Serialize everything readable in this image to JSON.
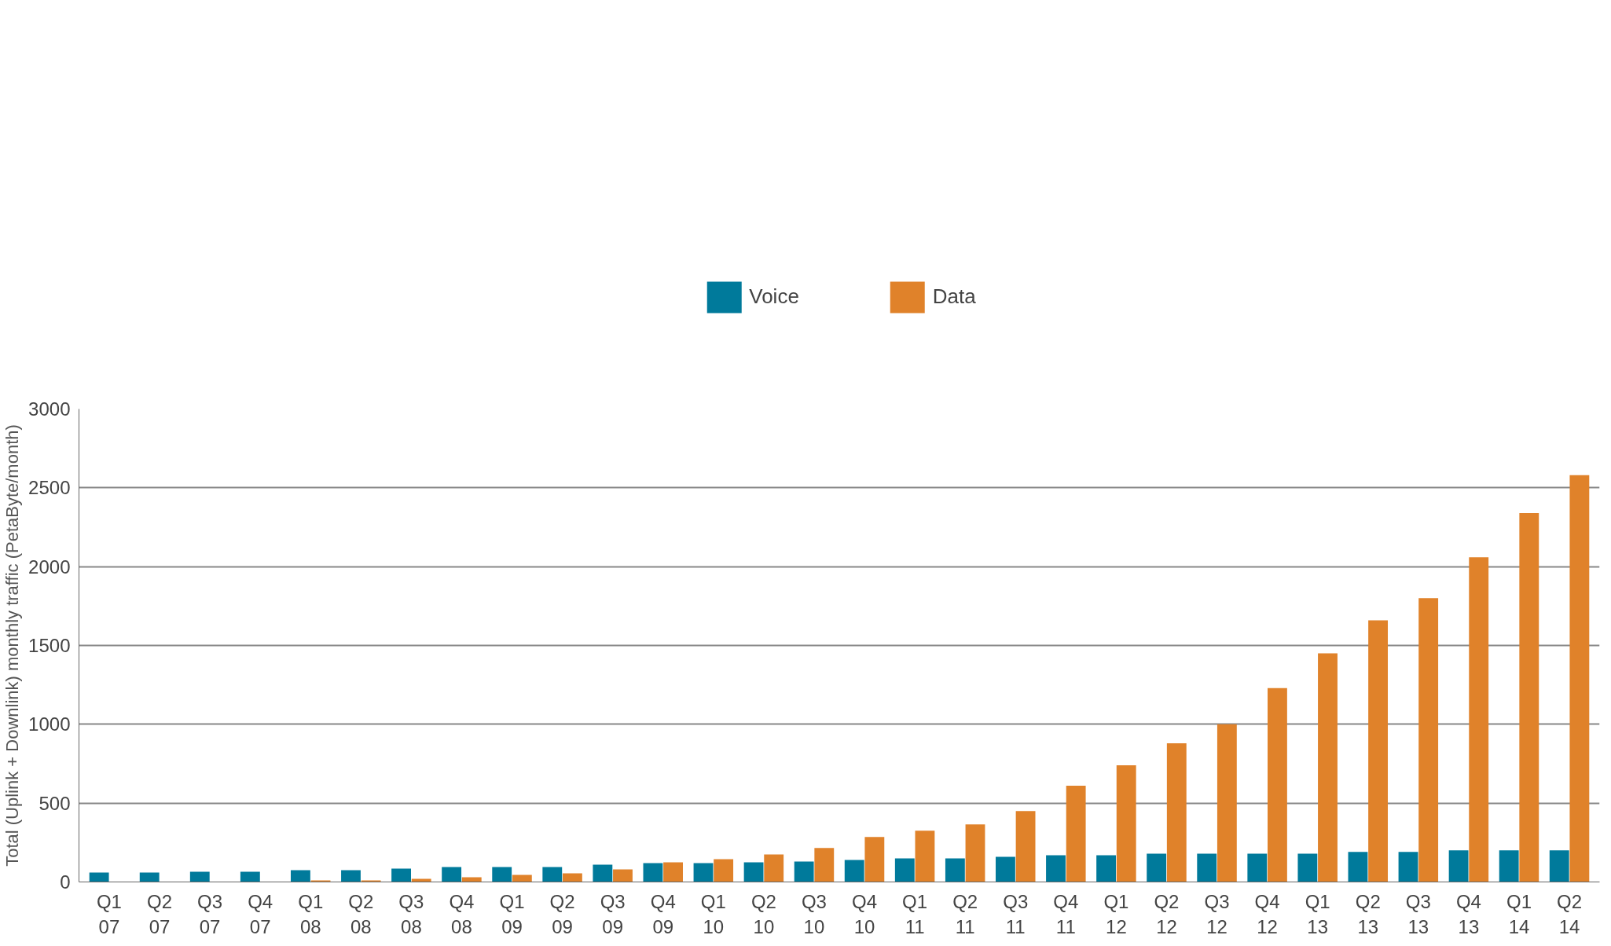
{
  "chart_data": {
    "type": "bar",
    "ylabel": "Total (Uplink + Downlink) monthly traffic (PetaByte/month)",
    "categories": [
      "Q1 07",
      "Q2 07",
      "Q3 07",
      "Q4 07",
      "Q1 08",
      "Q2 08",
      "Q3 08",
      "Q4 08",
      "Q1 09",
      "Q2 09",
      "Q3 09",
      "Q4 09",
      "Q1 10",
      "Q2 10",
      "Q3 10",
      "Q4 10",
      "Q1 11",
      "Q2 11",
      "Q3 11",
      "Q4 11",
      "Q1 12",
      "Q2 12",
      "Q3 12",
      "Q4 12",
      "Q1 13",
      "Q2 13",
      "Q3 13",
      "Q4 13",
      "Q1 14",
      "Q2 14"
    ],
    "series": [
      {
        "name": "Voice",
        "color": "#007a9b",
        "values": [
          60,
          60,
          65,
          65,
          75,
          75,
          85,
          95,
          95,
          95,
          110,
          120,
          120,
          125,
          130,
          140,
          150,
          150,
          160,
          170,
          170,
          180,
          180,
          180,
          180,
          190,
          190,
          200,
          200,
          200
        ]
      },
      {
        "name": "Data",
        "color": "#e0822a",
        "values": [
          0,
          0,
          0,
          0,
          10,
          10,
          20,
          30,
          45,
          55,
          80,
          125,
          145,
          175,
          215,
          285,
          325,
          365,
          450,
          610,
          740,
          880,
          1000,
          1230,
          1450,
          1660,
          1800,
          2060,
          2340,
          2580
        ]
      }
    ],
    "ylim": [
      0,
      3000
    ],
    "yticks": [
      0,
      500,
      1000,
      1500,
      2000,
      2500,
      3000
    ],
    "grid": "y",
    "legend": "top"
  }
}
